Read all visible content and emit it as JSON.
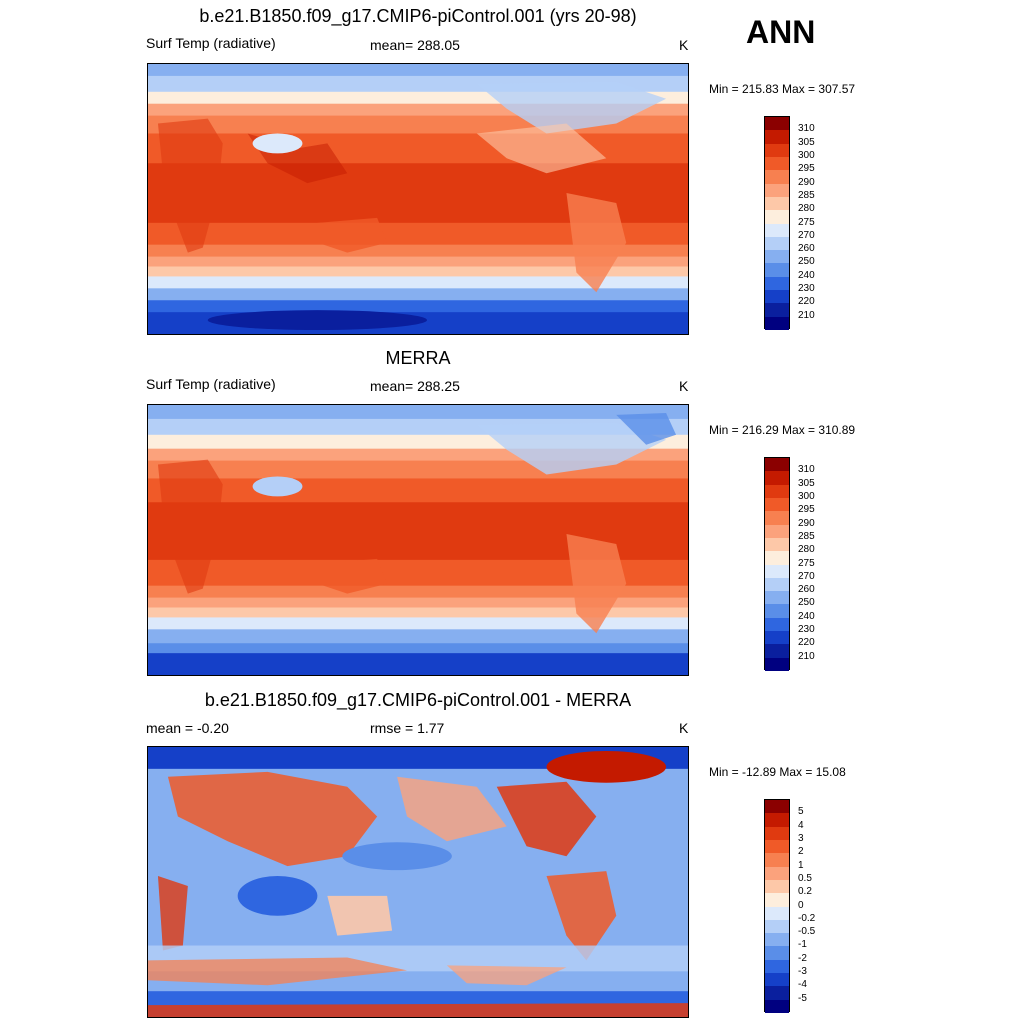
{
  "season": "ANN",
  "panels": [
    {
      "title": "b.e21.B1850.f09_g17.CMIP6-piControl.001 (yrs 20-98)",
      "left_label": "Surf Temp (radiative)",
      "center_label": "mean= 288.05",
      "units": "K",
      "minmax": "Min = 215.83 Max = 307.57",
      "colorbar_labels": [
        "310",
        "305",
        "300",
        "295",
        "290",
        "285",
        "280",
        "275",
        "270",
        "260",
        "250",
        "240",
        "230",
        "220",
        "210"
      ]
    },
    {
      "title": "MERRA",
      "left_label": "Surf Temp (radiative)",
      "center_label": "mean= 288.25",
      "units": "K",
      "minmax": "Min = 216.29 Max = 310.89",
      "colorbar_labels": [
        "310",
        "305",
        "300",
        "295",
        "290",
        "285",
        "280",
        "275",
        "270",
        "260",
        "250",
        "240",
        "230",
        "220",
        "210"
      ]
    },
    {
      "title": "b.e21.B1850.f09_g17.CMIP6-piControl.001 - MERRA",
      "left_label": "mean =  -0.20",
      "center_label": "rmse =   1.77",
      "units": "K",
      "minmax": "Min = -12.89 Max =  15.08",
      "colorbar_labels": [
        "5",
        "4",
        "3",
        "2",
        "1",
        "0.5",
        "0.2",
        "0",
        "-0.2",
        "-0.5",
        "-1",
        "-2",
        "-3",
        "-4",
        "-5"
      ]
    }
  ],
  "colors": {
    "abs_scale": [
      "#8b0000",
      "#c41a00",
      "#e03a10",
      "#f05a28",
      "#f78050",
      "#fba27c",
      "#fdc8a8",
      "#fdeedd",
      "#dce9fb",
      "#b4cff7",
      "#86aff0",
      "#5a8ee8",
      "#2f66e0",
      "#1540c8",
      "#0a1f9e",
      "#000080"
    ],
    "diff_scale": [
      "#8b0000",
      "#c41a00",
      "#e03a10",
      "#f05a28",
      "#f78050",
      "#fba27c",
      "#fdc8a8",
      "#fdeedd",
      "#dce9fb",
      "#b4cff7",
      "#86aff0",
      "#5a8ee8",
      "#2f66e0",
      "#1540c8",
      "#0a1f9e",
      "#000080"
    ]
  }
}
